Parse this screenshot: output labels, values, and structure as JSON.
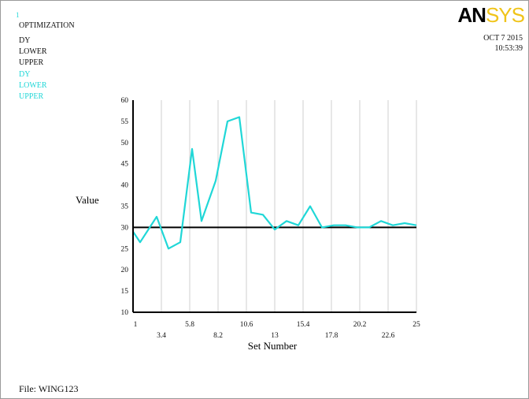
{
  "header": {
    "window_number": "1",
    "title": "OPTIMIZATION",
    "legend_black": [
      "DY",
      "LOWER",
      "UPPER"
    ],
    "legend_cyan": [
      "DY",
      "LOWER",
      "UPPER"
    ]
  },
  "logo": {
    "part1": "AN",
    "part2": "SYS"
  },
  "timestamp": {
    "date": "OCT  7 2015",
    "time": "10:53:39"
  },
  "footer": {
    "file_label": "File:",
    "file_name": "WING123"
  },
  "colors": {
    "series": "#20d7d7",
    "reference": "#000000",
    "axis": "#000000"
  },
  "chart_data": {
    "type": "line",
    "xlabel": "Set Number",
    "ylabel": "Value",
    "xlim": [
      1,
      25
    ],
    "ylim": [
      10,
      60
    ],
    "x_ticks_row1": [
      1,
      5.8,
      10.6,
      15.4,
      20.2,
      25
    ],
    "x_ticks_row2": [
      3.4,
      8.2,
      13,
      17.8,
      22.6
    ],
    "y_ticks": [
      10,
      15,
      20,
      25,
      30,
      35,
      40,
      45,
      50,
      55,
      60
    ],
    "grid": "vertical",
    "series": [
      {
        "color": "#20d7d7",
        "x": [
          1,
          1.6,
          3,
          4,
          5,
          6,
          6.8,
          8,
          9,
          10,
          11,
          12,
          13,
          14,
          15,
          16,
          17,
          18,
          19,
          20,
          21,
          22,
          23,
          24,
          25
        ],
        "values": [
          29,
          26.5,
          32.5,
          25,
          26.5,
          48.5,
          31.5,
          41,
          55,
          56,
          33.5,
          33,
          29.5,
          31.5,
          30.5,
          35,
          30,
          30.5,
          30.5,
          30,
          30,
          31.5,
          30.5,
          31,
          30.5
        ]
      }
    ],
    "reference_line": 30
  }
}
